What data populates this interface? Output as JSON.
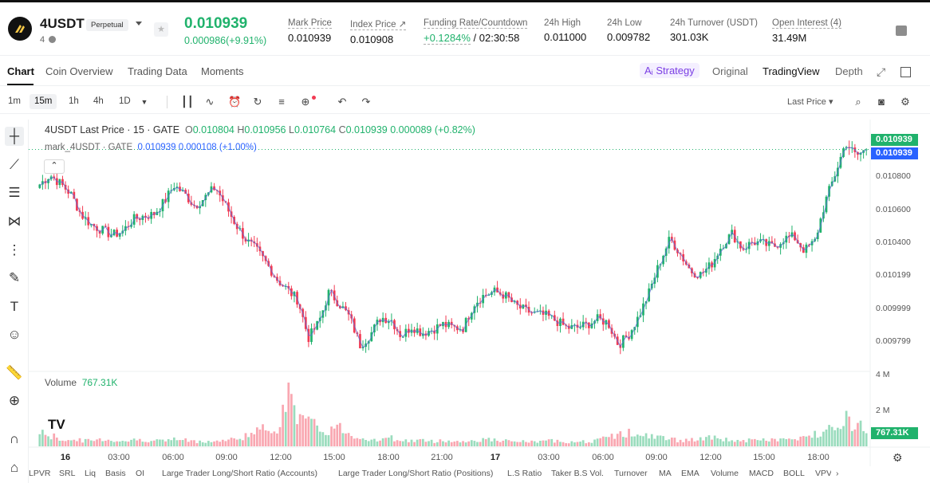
{
  "header": {
    "symbol": "4USDT",
    "badge": "Perpetual",
    "leverage": "4",
    "last_price": "0.010939",
    "change": "0.000986(+9.91%)",
    "stats": [
      {
        "label": "Mark Price",
        "value": "0.010939"
      },
      {
        "label": "Index Price ↗",
        "value": "0.010908"
      },
      {
        "label": "Funding Rate/Countdown",
        "value_green": "+0.1284%",
        "value": " / 02:30:58"
      },
      {
        "label": "24h High",
        "value": "0.011000"
      },
      {
        "label": "24h Low",
        "value": "0.009782"
      },
      {
        "label": "24h Turnover (USDT)",
        "value": "301.03K"
      },
      {
        "label": "Open Interest (4)",
        "value": "31.49M"
      }
    ]
  },
  "tabs": [
    "Chart",
    "Coin Overview",
    "Trading Data",
    "Moments"
  ],
  "right_tabs": {
    "strategy": "Strategy",
    "original": "Original",
    "tradingview": "TradingView",
    "depth": "Depth"
  },
  "toolbar": {
    "timeframes": [
      "1m",
      "15m",
      "1h",
      "4h",
      "1D"
    ],
    "active_timeframe": "15m",
    "price_type": "Last Price ▾"
  },
  "legend": {
    "main_name": "4USDT Last Price · 15 · GATE",
    "o_label": "O",
    "o": "0.010804",
    "h_label": "H",
    "h": "0.010956",
    "l_label": "L",
    "l": "0.010764",
    "c_label": "C",
    "c": "0.010939",
    "chg": "0.000089 (+0.82%)",
    "mark_name": "mark_4USDT · GATE",
    "mark_val": "0.010939",
    "mark_chg": "0.000108 (+1.00%)"
  },
  "volume": {
    "label": "Volume",
    "value": "767.31K",
    "tag": "767.31K",
    "axis": [
      "4 M",
      "2 M"
    ]
  },
  "price_tags": {
    "last": "0.010939",
    "mark": "0.010939"
  },
  "colors": {
    "up": "#20b26c",
    "down": "#f23b53",
    "mark_line": "#5b6bd8",
    "accent": "#7b3fe4"
  },
  "chart_data": {
    "type": "candlestick",
    "interval": "15m",
    "price_axis": [
      "0.010800",
      "0.010600",
      "0.010400",
      "0.010199",
      "0.009999",
      "0.009799"
    ],
    "time_axis": [
      "16",
      "03:00",
      "06:00",
      "09:00",
      "12:00",
      "15:00",
      "18:00",
      "21:00",
      "17",
      "03:00",
      "06:00",
      "09:00",
      "12:00",
      "15:00",
      "18:00"
    ],
    "ylim": [
      0.00972,
      0.01102
    ],
    "close_path": [
      0.010735,
      0.01079,
      0.01074,
      0.01068,
      0.01056,
      0.0105,
      0.01047,
      0.01044,
      0.01046,
      0.01053,
      0.01055,
      0.01056,
      0.01063,
      0.01073,
      0.01068,
      0.01061,
      0.01066,
      0.01072,
      0.01061,
      0.0105,
      0.01041,
      0.01035,
      0.01027,
      0.01018,
      0.01012,
      0.01006,
      0.00984,
      0.00993,
      0.01011,
      0.01004,
      0.00996,
      0.0098,
      0.00986,
      0.00996,
      0.00995,
      0.00985,
      0.00991,
      0.00987,
      0.00989,
      0.00992,
      0.0099,
      0.0099,
      0.01004,
      0.01009,
      0.01011,
      0.01009,
      0.01003,
      0.01,
      0.00998,
      0.00997,
      0.00994,
      0.0099,
      0.0099,
      0.00992,
      0.00995,
      0.00993,
      0.0098,
      0.00986,
      0.00997,
      0.01011,
      0.01028,
      0.01042,
      0.01033,
      0.01023,
      0.01021,
      0.01027,
      0.01038,
      0.01045,
      0.01036,
      0.0104,
      0.01039,
      0.01037,
      0.01042,
      0.01043,
      0.01035,
      0.0104,
      0.01063,
      0.0108,
      0.01098,
      0.0109,
      0.010939
    ],
    "volume_path": [
      0.22,
      0.18,
      0.12,
      0.1,
      0.1,
      0.09,
      0.12,
      0.1,
      0.09,
      0.1,
      0.11,
      0.1,
      0.09,
      0.12,
      0.1,
      0.08,
      0.09,
      0.08,
      0.1,
      0.12,
      0.18,
      0.25,
      0.28,
      0.3,
      0.95,
      0.5,
      0.38,
      0.3,
      0.25,
      0.32,
      0.2,
      0.15,
      0.12,
      0.1,
      0.14,
      0.1,
      0.09,
      0.1,
      0.08,
      0.1,
      0.08,
      0.08,
      0.09,
      0.12,
      0.1,
      0.09,
      0.07,
      0.08,
      0.07,
      0.08,
      0.1,
      0.08,
      0.07,
      0.08,
      0.1,
      0.14,
      0.2,
      0.22,
      0.18,
      0.16,
      0.15,
      0.12,
      0.1,
      0.1,
      0.12,
      0.14,
      0.12,
      0.1,
      0.09,
      0.1,
      0.1,
      0.11,
      0.12,
      0.1,
      0.14,
      0.2,
      0.28,
      0.4,
      0.45,
      0.35,
      0.32
    ]
  },
  "indicators": [
    "LPVR",
    "SRL",
    "Liq",
    "Basis",
    "OI",
    "Large Trader Long/Short Ratio (Accounts)",
    "Large Trader Long/Short Ratio (Positions)",
    "L.S Ratio",
    "Taker B.S Vol.",
    "Turnover",
    "MA",
    "EMA",
    "Volume",
    "MACD",
    "BOLL",
    "VPVR"
  ]
}
